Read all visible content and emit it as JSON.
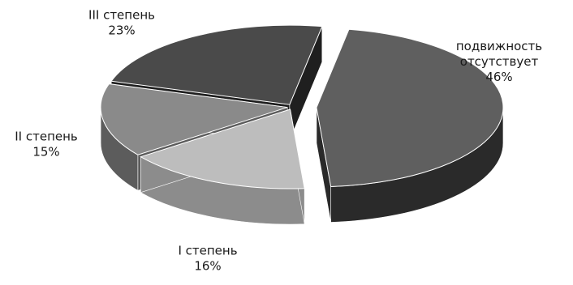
{
  "chart_data": {
    "type": "pie",
    "style": "3d-exploded",
    "title": "",
    "slices": [
      {
        "label": "подвижность отсутствует",
        "label_lines": [
          "подвижность",
          "отсутствует"
        ],
        "percent_label": "46%",
        "value": 46,
        "top_color": "#5f5f5f",
        "side_color": "#2a2a2a"
      },
      {
        "label": "I степень",
        "label_lines": [
          "I степень"
        ],
        "percent_label": "16%",
        "value": 16,
        "top_color": "#bdbdbd",
        "side_color": "#8c8c8c"
      },
      {
        "label": "II степень",
        "label_lines": [
          "II степень"
        ],
        "percent_label": "15%",
        "value": 15,
        "top_color": "#8a8a8a",
        "side_color": "#5c5c5c"
      },
      {
        "label": "III степень",
        "label_lines": [
          "III степень"
        ],
        "percent_label": "23%",
        "value": 23,
        "top_color": "#4a4a4a",
        "side_color": "#1f1f1f"
      }
    ]
  }
}
